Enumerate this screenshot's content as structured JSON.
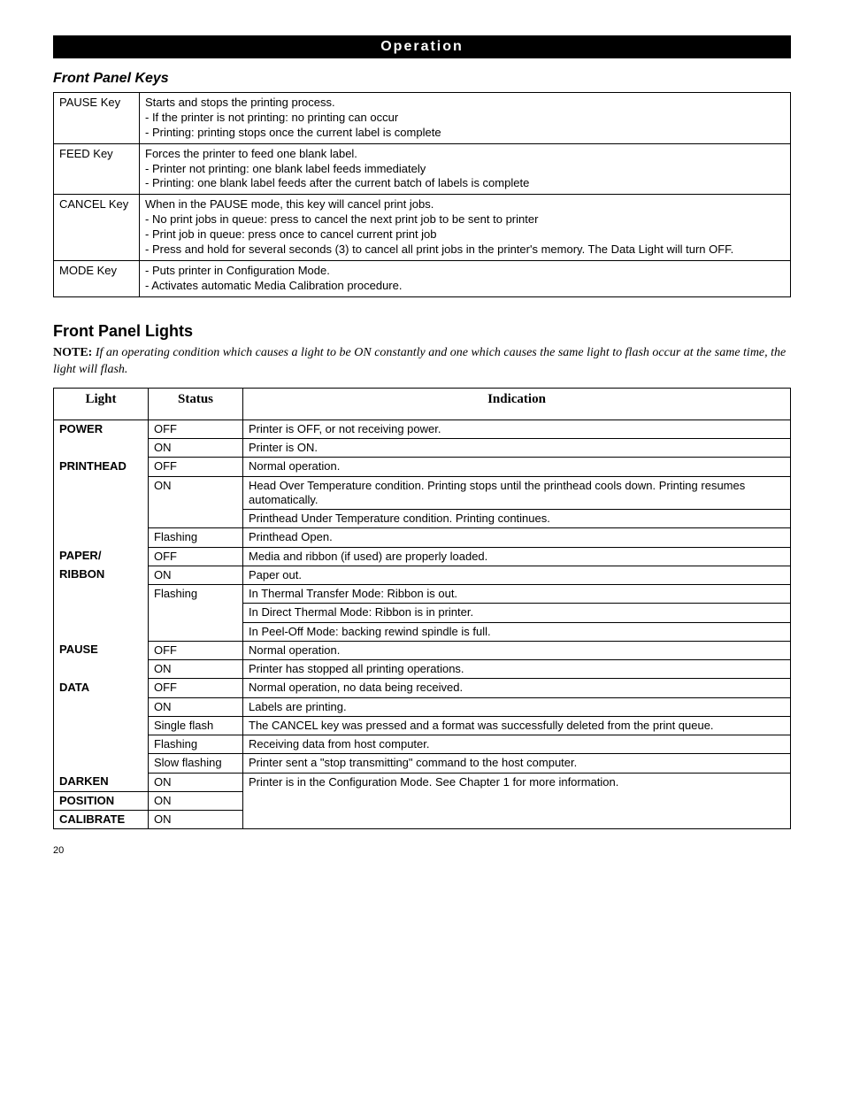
{
  "header": "Operation",
  "keys_section_title": "Front Panel Keys",
  "keys": [
    {
      "name": "PAUSE Key",
      "desc": "Starts and stops the printing process.\n- If the printer is not printing: no printing can occur\n- Printing: printing stops once the current label is complete"
    },
    {
      "name": "FEED Key",
      "desc": "Forces the printer to feed one blank label.\n- Printer not printing: one blank label feeds immediately\n- Printing: one blank label feeds after the current batch of labels is complete"
    },
    {
      "name": "CANCEL Key",
      "desc": "When in the PAUSE mode, this key will cancel print jobs.\n- No print jobs in queue: press to cancel the next print job to be sent to printer\n- Print job in queue: press once to cancel current print job\n- Press and hold for several seconds (3) to cancel all print jobs in the printer's memory. The Data Light will turn OFF."
    },
    {
      "name": "MODE Key",
      "desc": "- Puts printer in Configuration Mode.\n- Activates automatic Media Calibration procedure."
    }
  ],
  "lights_section_title": "Front Panel Lights",
  "note_label": "NOTE: ",
  "note_text": "If an operating condition which causes a light to be ON constantly and one which causes the same light to flash occur at the same time, the light will flash.",
  "lights_headers": {
    "light": "Light",
    "status": "Status",
    "indication": "Indication"
  },
  "lights": {
    "power": {
      "label": "POWER",
      "rows": [
        {
          "status": "OFF",
          "ind": "Printer is OFF, or not receiving power."
        },
        {
          "status": "ON",
          "ind": "Printer is ON."
        }
      ]
    },
    "printhead": {
      "label": "PRINTHEAD",
      "rows": [
        {
          "status": "OFF",
          "ind": "Normal operation."
        },
        {
          "status": "ON",
          "ind": "Head Over Temperature condition. Printing stops until the printhead cools down. Printing resumes automatically."
        },
        {
          "status": "",
          "ind": "Printhead Under Temperature condition. Printing continues."
        },
        {
          "status": "Flashing",
          "ind": "Printhead Open."
        }
      ]
    },
    "paper": {
      "label1": "PAPER/",
      "label2": "RIBBON",
      "rows": [
        {
          "status": "OFF",
          "ind": "Media and ribbon (if used) are properly loaded."
        },
        {
          "status": "ON",
          "ind": "Paper out."
        },
        {
          "status": "Flashing",
          "ind": "In Thermal Transfer Mode: Ribbon is out."
        },
        {
          "status": "",
          "ind": "In Direct Thermal Mode: Ribbon is in printer."
        },
        {
          "status": "",
          "ind": "In Peel-Off Mode: backing rewind spindle is full."
        }
      ]
    },
    "pause": {
      "label": "PAUSE",
      "rows": [
        {
          "status": "OFF",
          "ind": "Normal operation."
        },
        {
          "status": "ON",
          "ind": "Printer has stopped all printing operations."
        }
      ]
    },
    "data": {
      "label": "DATA",
      "rows": [
        {
          "status": "OFF",
          "ind": "Normal operation, no data being received."
        },
        {
          "status": "ON",
          "ind": "Labels are printing."
        },
        {
          "status": "Single flash",
          "ind": "The CANCEL key was pressed and a format was successfully deleted from the print queue."
        },
        {
          "status": "Flashing",
          "ind": "Receiving data from host computer."
        },
        {
          "status": "Slow flashing",
          "ind": "Printer sent a \"stop transmitting\" command to the host computer."
        }
      ]
    },
    "config": {
      "darken": "DARKEN",
      "position": "POSITION",
      "calibrate": "CALIBRATE",
      "on": "ON",
      "ind": "Printer is in the Configuration Mode. See Chapter 1 for more information."
    }
  },
  "page_number": "20"
}
